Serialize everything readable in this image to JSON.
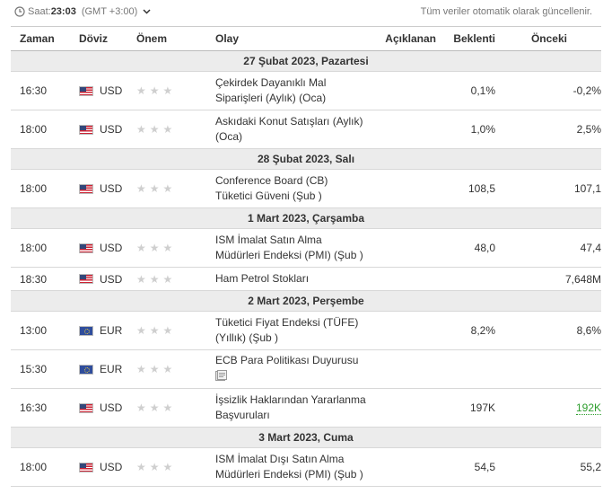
{
  "header": {
    "time_label": "Saat:",
    "time_value": "23:03",
    "timezone": "(GMT +3:00)",
    "auto_update_note": "Tüm veriler otomatik olarak güncellenir."
  },
  "columns": {
    "time": "Zaman",
    "currency": "Döviz",
    "importance": "Önem",
    "event": "Olay",
    "actual": "Açıklanan",
    "forecast": "Beklenti",
    "previous": "Önceki"
  },
  "groups": [
    {
      "date": "27 Şubat 2023, Pazartesi",
      "events": [
        {
          "time": "16:30",
          "currency": "USD",
          "stars": "★★★",
          "event": "Çekirdek Dayanıklı Mal Siparişleri (Aylık) (Oca)",
          "actual": "",
          "forecast": "0,1%",
          "previous": "-0,2%"
        },
        {
          "time": "18:00",
          "currency": "USD",
          "stars": "★★★",
          "event": "Askıdaki Konut Satışları (Aylık) (Oca)",
          "actual": "",
          "forecast": "1,0%",
          "previous": "2,5%"
        }
      ]
    },
    {
      "date": "28 Şubat 2023, Salı",
      "events": [
        {
          "time": "18:00",
          "currency": "USD",
          "stars": "★★★",
          "event": "Conference Board (CB) Tüketici Güveni (Şub )",
          "actual": "",
          "forecast": "108,5",
          "previous": "107,1"
        }
      ]
    },
    {
      "date": "1 Mart 2023, Çarşamba",
      "events": [
        {
          "time": "18:00",
          "currency": "USD",
          "stars": "★★★",
          "event": "ISM İmalat Satın Alma Müdürleri Endeksi (PMI) (Şub )",
          "actual": "",
          "forecast": "48,0",
          "previous": "47,4"
        },
        {
          "time": "18:30",
          "currency": "USD",
          "stars": "★★★",
          "event": "Ham Petrol Stokları",
          "actual": "",
          "forecast": "",
          "previous": "7,648M"
        }
      ]
    },
    {
      "date": "2 Mart 2023, Perşembe",
      "events": [
        {
          "time": "13:00",
          "currency": "EUR",
          "stars": "★★★",
          "event": "Tüketici Fiyat Endeksi (TÜFE) (Yıllık) (Şub )",
          "actual": "",
          "forecast": "8,2%",
          "previous": "8,6%"
        },
        {
          "time": "15:30",
          "currency": "EUR",
          "stars": "★★★",
          "event": "ECB Para Politikası Duyurusu",
          "actual": "",
          "forecast": "",
          "previous": ""
        },
        {
          "time": "16:30",
          "currency": "USD",
          "stars": "★★★",
          "event": "İşsizlik Haklarından Yararlanma Başvuruları",
          "actual": "",
          "forecast": "197K",
          "previous": "192K"
        }
      ]
    },
    {
      "date": "3 Mart 2023, Cuma",
      "events": [
        {
          "time": "18:00",
          "currency": "USD",
          "stars": "★★★",
          "event": "ISM İmalat Dışı Satın Alma Müdürleri Endeksi (PMI) (Şub )",
          "actual": "",
          "forecast": "54,5",
          "previous": "55,2"
        }
      ]
    }
  ],
  "colors": {
    "star_inactive": "#cfcfcf",
    "previous_revised_up": "#2e9e2e",
    "date_row_bg": "#ececec"
  }
}
